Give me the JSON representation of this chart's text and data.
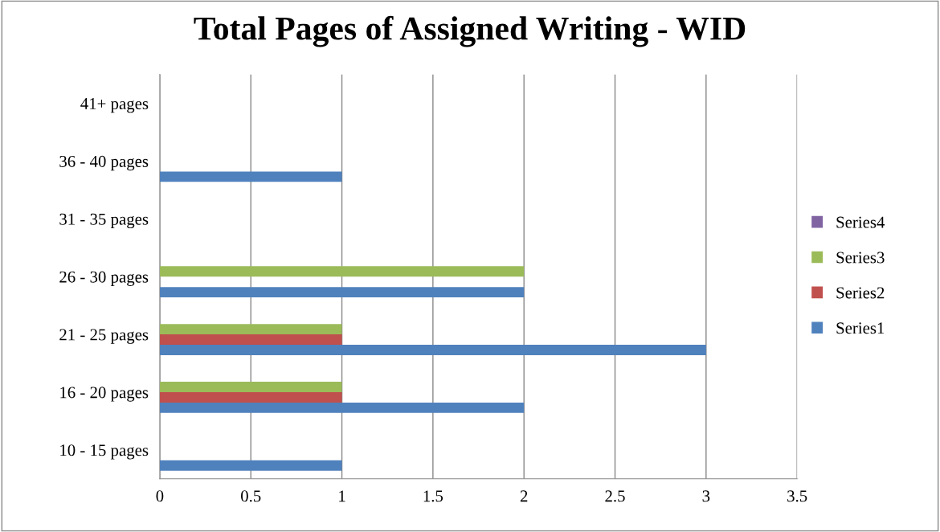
{
  "chart_data": {
    "type": "bar",
    "orientation": "horizontal",
    "title": "Total Pages of Assigned Writing - WID",
    "categories": [
      "41+ pages",
      "36 - 40 pages",
      "31 - 35 pages",
      "26 - 30 pages",
      "21 - 25 pages",
      "16 - 20 pages",
      "10 - 15 pages"
    ],
    "series": [
      {
        "name": "Series1",
        "color": "#4f81bd",
        "values": [
          0,
          1,
          0,
          2,
          3,
          2,
          1
        ]
      },
      {
        "name": "Series2",
        "color": "#c0504d",
        "values": [
          0,
          0,
          0,
          0,
          1,
          1,
          0
        ]
      },
      {
        "name": "Series3",
        "color": "#9bbb59",
        "values": [
          0,
          0,
          0,
          2,
          1,
          1,
          0
        ]
      },
      {
        "name": "Series4",
        "color": "#8064a2",
        "values": [
          0,
          0,
          0,
          0,
          0,
          0,
          0
        ]
      }
    ],
    "xlim": [
      0,
      3.5
    ],
    "xticks": [
      0,
      0.5,
      1,
      1.5,
      2,
      2.5,
      3,
      3.5
    ],
    "grid": "x",
    "legend": "right"
  }
}
